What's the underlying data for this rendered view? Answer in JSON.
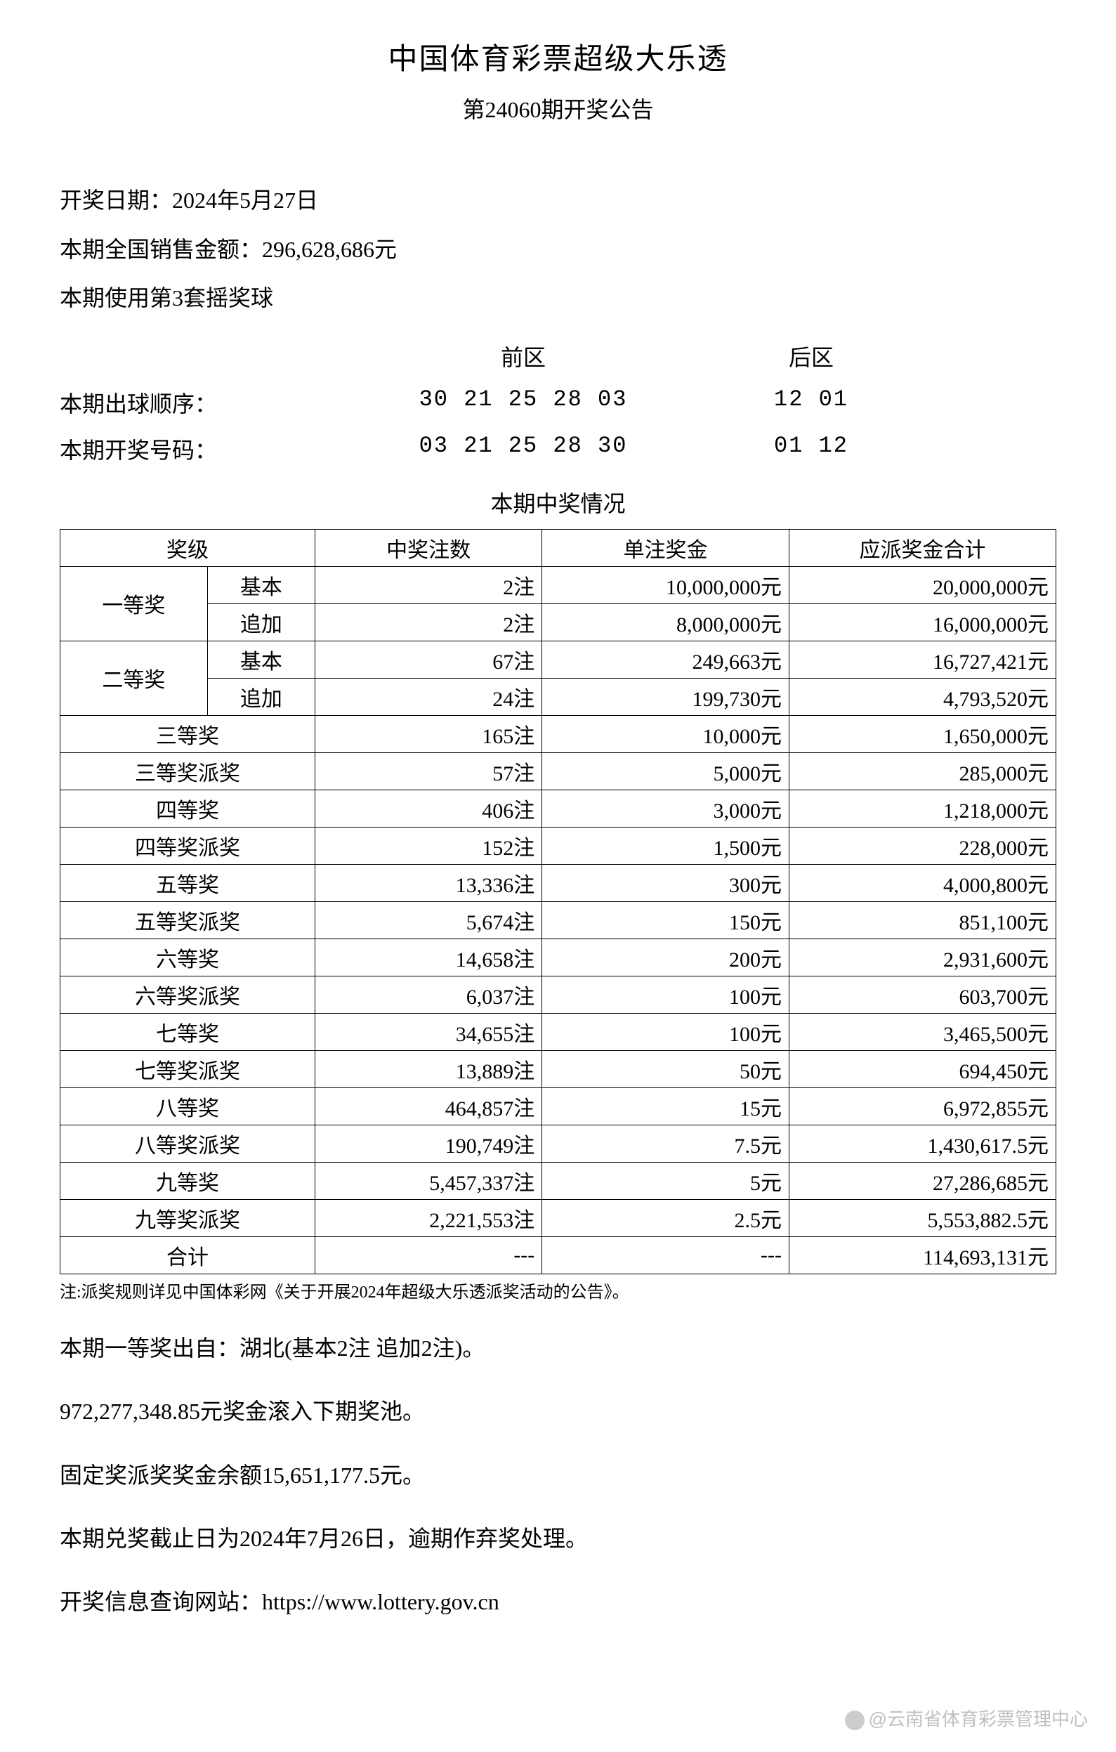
{
  "header": {
    "main_title": "中国体育彩票超级大乐透",
    "sub_title": "第24060期开奖公告"
  },
  "info": {
    "draw_date": "开奖日期：2024年5月27日",
    "sales_amount": "本期全国销售金额：296,628,686元",
    "ball_set": "本期使用第3套摇奖球"
  },
  "numbers": {
    "front_label": "前区",
    "back_label": "后区",
    "draw_order_label": "本期出球顺序：",
    "draw_order_front": "30 21 25 28 03",
    "draw_order_back": "12 01",
    "winning_label": "本期开奖号码：",
    "winning_front": "03 21 25 28 30",
    "winning_back": "01 12"
  },
  "prize_section_title": "本期中奖情况",
  "table": {
    "headers": {
      "level": "奖级",
      "count": "中奖注数",
      "per_prize": "单注奖金",
      "total": "应派奖金合计"
    },
    "first_prize": {
      "name": "一等奖",
      "basic_label": "基本",
      "basic_count": "2注",
      "basic_per": "10,000,000元",
      "basic_total": "20,000,000元",
      "extra_label": "追加",
      "extra_count": "2注",
      "extra_per": "8,000,000元",
      "extra_total": "16,000,000元"
    },
    "second_prize": {
      "name": "二等奖",
      "basic_label": "基本",
      "basic_count": "67注",
      "basic_per": "249,663元",
      "basic_total": "16,727,421元",
      "extra_label": "追加",
      "extra_count": "24注",
      "extra_per": "199,730元",
      "extra_total": "4,793,520元"
    },
    "rows": [
      {
        "name": "三等奖",
        "count": "165注",
        "per": "10,000元",
        "total": "1,650,000元"
      },
      {
        "name": "三等奖派奖",
        "count": "57注",
        "per": "5,000元",
        "total": "285,000元"
      },
      {
        "name": "四等奖",
        "count": "406注",
        "per": "3,000元",
        "total": "1,218,000元"
      },
      {
        "name": "四等奖派奖",
        "count": "152注",
        "per": "1,500元",
        "total": "228,000元"
      },
      {
        "name": "五等奖",
        "count": "13,336注",
        "per": "300元",
        "total": "4,000,800元"
      },
      {
        "name": "五等奖派奖",
        "count": "5,674注",
        "per": "150元",
        "total": "851,100元"
      },
      {
        "name": "六等奖",
        "count": "14,658注",
        "per": "200元",
        "total": "2,931,600元"
      },
      {
        "name": "六等奖派奖",
        "count": "6,037注",
        "per": "100元",
        "total": "603,700元"
      },
      {
        "name": "七等奖",
        "count": "34,655注",
        "per": "100元",
        "total": "3,465,500元"
      },
      {
        "name": "七等奖派奖",
        "count": "13,889注",
        "per": "50元",
        "total": "694,450元"
      },
      {
        "name": "八等奖",
        "count": "464,857注",
        "per": "15元",
        "total": "6,972,855元"
      },
      {
        "name": "八等奖派奖",
        "count": "190,749注",
        "per": "7.5元",
        "total": "1,430,617.5元"
      },
      {
        "name": "九等奖",
        "count": "5,457,337注",
        "per": "5元",
        "total": "27,286,685元"
      },
      {
        "name": "九等奖派奖",
        "count": "2,221,553注",
        "per": "2.5元",
        "total": "5,553,882.5元"
      }
    ],
    "total_row": {
      "name": "合计",
      "count": "---",
      "per": "---",
      "total": "114,693,131元"
    }
  },
  "note": "注:派奖规则详见中国体彩网《关于开展2024年超级大乐透派奖活动的公告》。",
  "footer": {
    "line1": "本期一等奖出自：湖北(基本2注 追加2注)。",
    "line2": "972,277,348.85元奖金滚入下期奖池。",
    "line3": "固定奖派奖奖金余额15,651,177.5元。",
    "line4": "本期兑奖截止日为2024年7月26日，逾期作弃奖处理。",
    "line5": "开奖信息查询网站：https://www.lottery.gov.cn"
  },
  "watermark": "@云南省体育彩票管理中心"
}
